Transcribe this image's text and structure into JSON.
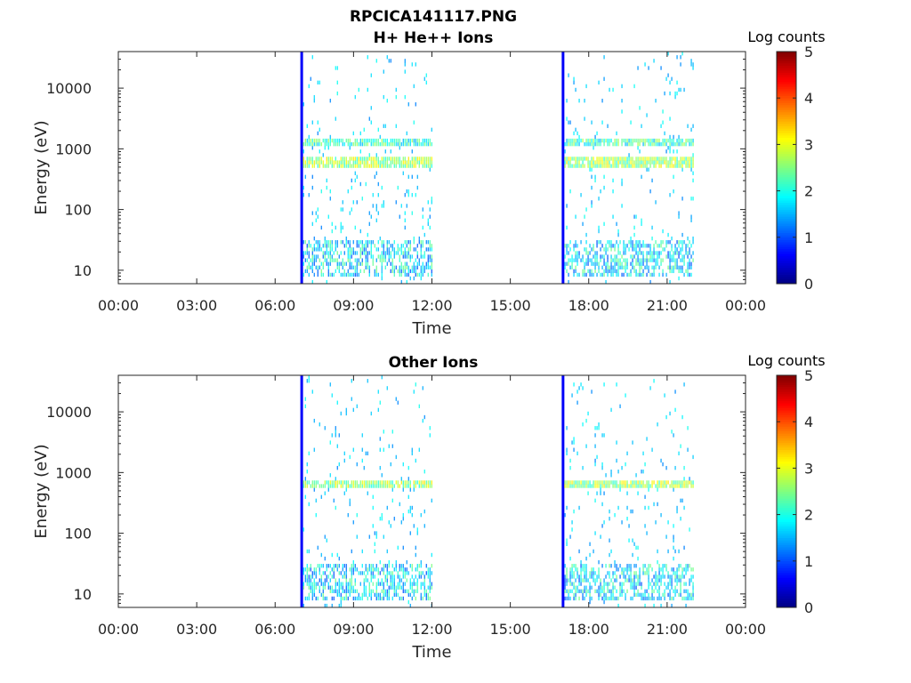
{
  "figure": {
    "title_line1": "RPCICA141117.PNG"
  },
  "chart_data": [
    {
      "type": "heatmap",
      "title": "H+ He++ Ions",
      "xlabel": "Time",
      "ylabel": "Energy (eV)",
      "x_ticks": [
        "00:00",
        "03:00",
        "06:00",
        "09:00",
        "12:00",
        "15:00",
        "18:00",
        "21:00",
        "00:00"
      ],
      "x_range_hours": [
        0,
        24
      ],
      "y_scale": "log",
      "y_range": [
        6,
        40000
      ],
      "y_ticks": [
        10,
        100,
        1000,
        10000
      ],
      "y_tick_labels": [
        "10",
        "100",
        "1000",
        "10000"
      ],
      "colorbar": {
        "label": "Log counts",
        "range": [
          0,
          5
        ],
        "ticks": [
          "0",
          "1",
          "2",
          "3",
          "4",
          "5"
        ],
        "colormap": "jet"
      },
      "data_intervals_hours": [
        [
          7.0,
          12.0
        ],
        [
          17.0,
          22.0
        ]
      ],
      "bright_bands_eV": [
        600,
        1300
      ],
      "low_energy_band_eV": [
        8,
        30
      ]
    },
    {
      "type": "heatmap",
      "title": "Other Ions",
      "xlabel": "Time",
      "ylabel": "Energy (eV)",
      "x_ticks": [
        "00:00",
        "03:00",
        "06:00",
        "09:00",
        "12:00",
        "15:00",
        "18:00",
        "21:00",
        "00:00"
      ],
      "x_range_hours": [
        0,
        24
      ],
      "y_scale": "log",
      "y_range": [
        6,
        40000
      ],
      "y_ticks": [
        10,
        100,
        1000,
        10000
      ],
      "y_tick_labels": [
        "10",
        "100",
        "1000",
        "10000"
      ],
      "colorbar": {
        "label": "Log counts",
        "range": [
          0,
          5
        ],
        "ticks": [
          "0",
          "1",
          "2",
          "3",
          "4",
          "5"
        ],
        "colormap": "jet"
      },
      "data_intervals_hours": [
        [
          7.0,
          12.0
        ],
        [
          17.0,
          22.0
        ]
      ],
      "bright_bands_eV": [
        650
      ],
      "low_energy_band_eV": [
        8,
        30
      ]
    }
  ]
}
